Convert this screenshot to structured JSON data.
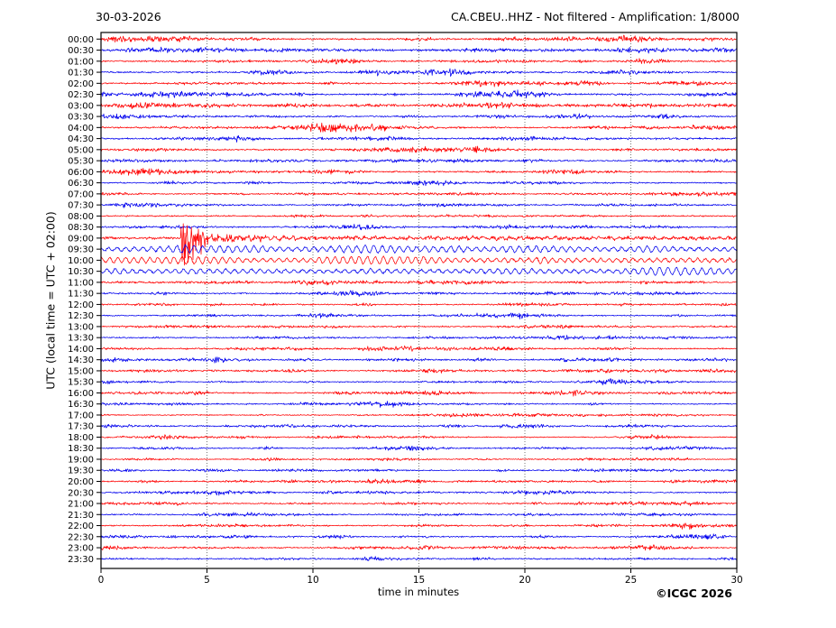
{
  "header": {
    "date": "30-03-2026",
    "title": "CA.CBEU..HHZ - Not filtered - Amplification: 1/8000"
  },
  "footer": {
    "xlabel": "time in minutes",
    "copyright": "©ICGC 2026"
  },
  "chart_data": {
    "type": "line",
    "subtype": "helicorder-dayplot",
    "title": "CA.CBEU..HHZ - Not filtered - Amplification: 1/8000",
    "date_label": "30-03-2026",
    "station": "CA.CBEU..HHZ",
    "filter": "Not filtered",
    "amplification": "1/8000",
    "xlabel": "time in minutes",
    "ylabel": "UTC (local time = UTC + 02:00)",
    "xlim": [
      0,
      30
    ],
    "xticks": [
      0,
      5,
      10,
      15,
      20,
      25,
      30
    ],
    "minutes_per_row": 30,
    "grid": {
      "vertical_at_minutes": [
        5,
        10,
        15,
        20,
        25
      ],
      "style": "dotted",
      "color": "#777777"
    },
    "legend": "none",
    "colors": {
      "red": "#ff0000",
      "blue": "#0000ee"
    },
    "rows": [
      {
        "utc": "00:00",
        "color": "red",
        "amp": 1.4,
        "style": "noise"
      },
      {
        "utc": "00:30",
        "color": "blue",
        "amp": 1.4,
        "style": "noise"
      },
      {
        "utc": "01:00",
        "color": "red",
        "amp": 1.4,
        "style": "noise"
      },
      {
        "utc": "01:30",
        "color": "blue",
        "amp": 1.4,
        "style": "noise"
      },
      {
        "utc": "02:00",
        "color": "red",
        "amp": 1.4,
        "style": "noise"
      },
      {
        "utc": "02:30",
        "color": "blue",
        "amp": 1.4,
        "style": "noise"
      },
      {
        "utc": "03:00",
        "color": "red",
        "amp": 1.3,
        "style": "noise"
      },
      {
        "utc": "03:30",
        "color": "blue",
        "amp": 1.3,
        "style": "noise"
      },
      {
        "utc": "04:00",
        "color": "red",
        "amp": 1.3,
        "style": "noise"
      },
      {
        "utc": "04:30",
        "color": "blue",
        "amp": 1.3,
        "style": "noise"
      },
      {
        "utc": "05:00",
        "color": "red",
        "amp": 1.3,
        "style": "noise"
      },
      {
        "utc": "05:30",
        "color": "blue",
        "amp": 1.2,
        "style": "noise"
      },
      {
        "utc": "06:00",
        "color": "red",
        "amp": 1.2,
        "style": "noise"
      },
      {
        "utc": "06:30",
        "color": "blue",
        "amp": 1.1,
        "style": "noise"
      },
      {
        "utc": "07:00",
        "color": "red",
        "amp": 1.1,
        "style": "noise"
      },
      {
        "utc": "07:30",
        "color": "blue",
        "amp": 1.1,
        "style": "noise"
      },
      {
        "utc": "08:00",
        "color": "red",
        "amp": 1.1,
        "style": "noise"
      },
      {
        "utc": "08:30",
        "color": "blue",
        "amp": 1.1,
        "style": "noise"
      },
      {
        "utc": "09:00",
        "color": "red",
        "amp": 1.2,
        "style": "event"
      },
      {
        "utc": "09:30",
        "color": "blue",
        "amp": 2.0,
        "style": "coda"
      },
      {
        "utc": "10:00",
        "color": "red",
        "amp": 2.0,
        "style": "coda"
      },
      {
        "utc": "10:30",
        "color": "blue",
        "amp": 1.7,
        "style": "coda"
      },
      {
        "utc": "11:00",
        "color": "red",
        "amp": 1.3,
        "style": "noise"
      },
      {
        "utc": "11:30",
        "color": "blue",
        "amp": 1.2,
        "style": "noise"
      },
      {
        "utc": "12:00",
        "color": "red",
        "amp": 1.05,
        "style": "noise"
      },
      {
        "utc": "12:30",
        "color": "blue",
        "amp": 1.05,
        "style": "noise"
      },
      {
        "utc": "13:00",
        "color": "red",
        "amp": 1.05,
        "style": "noise"
      },
      {
        "utc": "13:30",
        "color": "blue",
        "amp": 1.05,
        "style": "noise"
      },
      {
        "utc": "14:00",
        "color": "red",
        "amp": 1.05,
        "style": "noise"
      },
      {
        "utc": "14:30",
        "color": "blue",
        "amp": 1.05,
        "style": "noise"
      },
      {
        "utc": "15:00",
        "color": "red",
        "amp": 1.0,
        "style": "noise"
      },
      {
        "utc": "15:30",
        "color": "blue",
        "amp": 1.0,
        "style": "noise"
      },
      {
        "utc": "16:00",
        "color": "red",
        "amp": 1.0,
        "style": "noise"
      },
      {
        "utc": "16:30",
        "color": "blue",
        "amp": 1.0,
        "style": "noise"
      },
      {
        "utc": "17:00",
        "color": "red",
        "amp": 0.9,
        "style": "noise"
      },
      {
        "utc": "17:30",
        "color": "blue",
        "amp": 0.9,
        "style": "noise"
      },
      {
        "utc": "18:00",
        "color": "red",
        "amp": 0.9,
        "style": "noise"
      },
      {
        "utc": "18:30",
        "color": "blue",
        "amp": 0.9,
        "style": "noise"
      },
      {
        "utc": "19:00",
        "color": "red",
        "amp": 0.9,
        "style": "noise"
      },
      {
        "utc": "19:30",
        "color": "blue",
        "amp": 0.9,
        "style": "noise"
      },
      {
        "utc": "20:00",
        "color": "red",
        "amp": 1.1,
        "style": "noise"
      },
      {
        "utc": "20:30",
        "color": "blue",
        "amp": 1.1,
        "style": "noise"
      },
      {
        "utc": "21:00",
        "color": "red",
        "amp": 1.1,
        "style": "noise"
      },
      {
        "utc": "21:30",
        "color": "blue",
        "amp": 1.1,
        "style": "noise"
      },
      {
        "utc": "22:00",
        "color": "red",
        "amp": 1.1,
        "style": "noise"
      },
      {
        "utc": "22:30",
        "color": "blue",
        "amp": 1.1,
        "style": "noise"
      },
      {
        "utc": "23:00",
        "color": "red",
        "amp": 1.1,
        "style": "noise"
      },
      {
        "utc": "23:30",
        "color": "blue",
        "amp": 1.1,
        "style": "noise"
      }
    ],
    "event": {
      "row_utc": "09:00",
      "onset_minute": 3.78,
      "clipped": true,
      "description": "Seismic event: clipped burst at ~minute 3.8-5.5 with spikes crossing neighbouring traces, elevated decaying coda through 09:00-10:30 rows",
      "spikes": [
        {
          "minute": 3.78,
          "dy": -12
        },
        {
          "minute": 3.83,
          "dy": 26
        },
        {
          "minute": 3.89,
          "dy": -16
        },
        {
          "minute": 3.93,
          "dy": 30
        },
        {
          "minute": 3.99,
          "dy": 22
        },
        {
          "minute": 4.05,
          "dy": -14
        },
        {
          "minute": 4.1,
          "dy": 27
        },
        {
          "minute": 4.18,
          "dy": 18
        },
        {
          "minute": 4.26,
          "dy": -12
        },
        {
          "minute": 4.35,
          "dy": 24
        },
        {
          "minute": 4.47,
          "dy": 14
        },
        {
          "minute": 4.6,
          "dy": -10
        },
        {
          "minute": 4.72,
          "dy": 18
        },
        {
          "minute": 4.9,
          "dy": 10
        }
      ],
      "coda_features": [
        {
          "row_utc": "09:30",
          "minute": 26.0,
          "gain": 1.6
        }
      ]
    }
  },
  "layout_labels": {
    "row_times": [
      "00:00",
      "00:30",
      "01:00",
      "01:30",
      "02:00",
      "02:30",
      "03:00",
      "03:30",
      "04:00",
      "04:30",
      "05:00",
      "05:30",
      "06:00",
      "06:30",
      "07:00",
      "07:30",
      "08:00",
      "08:30",
      "09:00",
      "09:30",
      "10:00",
      "10:30",
      "11:00",
      "11:30",
      "12:00",
      "12:30",
      "13:00",
      "13:30",
      "14:00",
      "14:30",
      "15:00",
      "15:30",
      "16:00",
      "16:30",
      "17:00",
      "17:30",
      "18:00",
      "18:30",
      "19:00",
      "19:30",
      "20:00",
      "20:30",
      "21:00",
      "21:30",
      "22:00",
      "22:30",
      "23:00",
      "23:30"
    ]
  }
}
